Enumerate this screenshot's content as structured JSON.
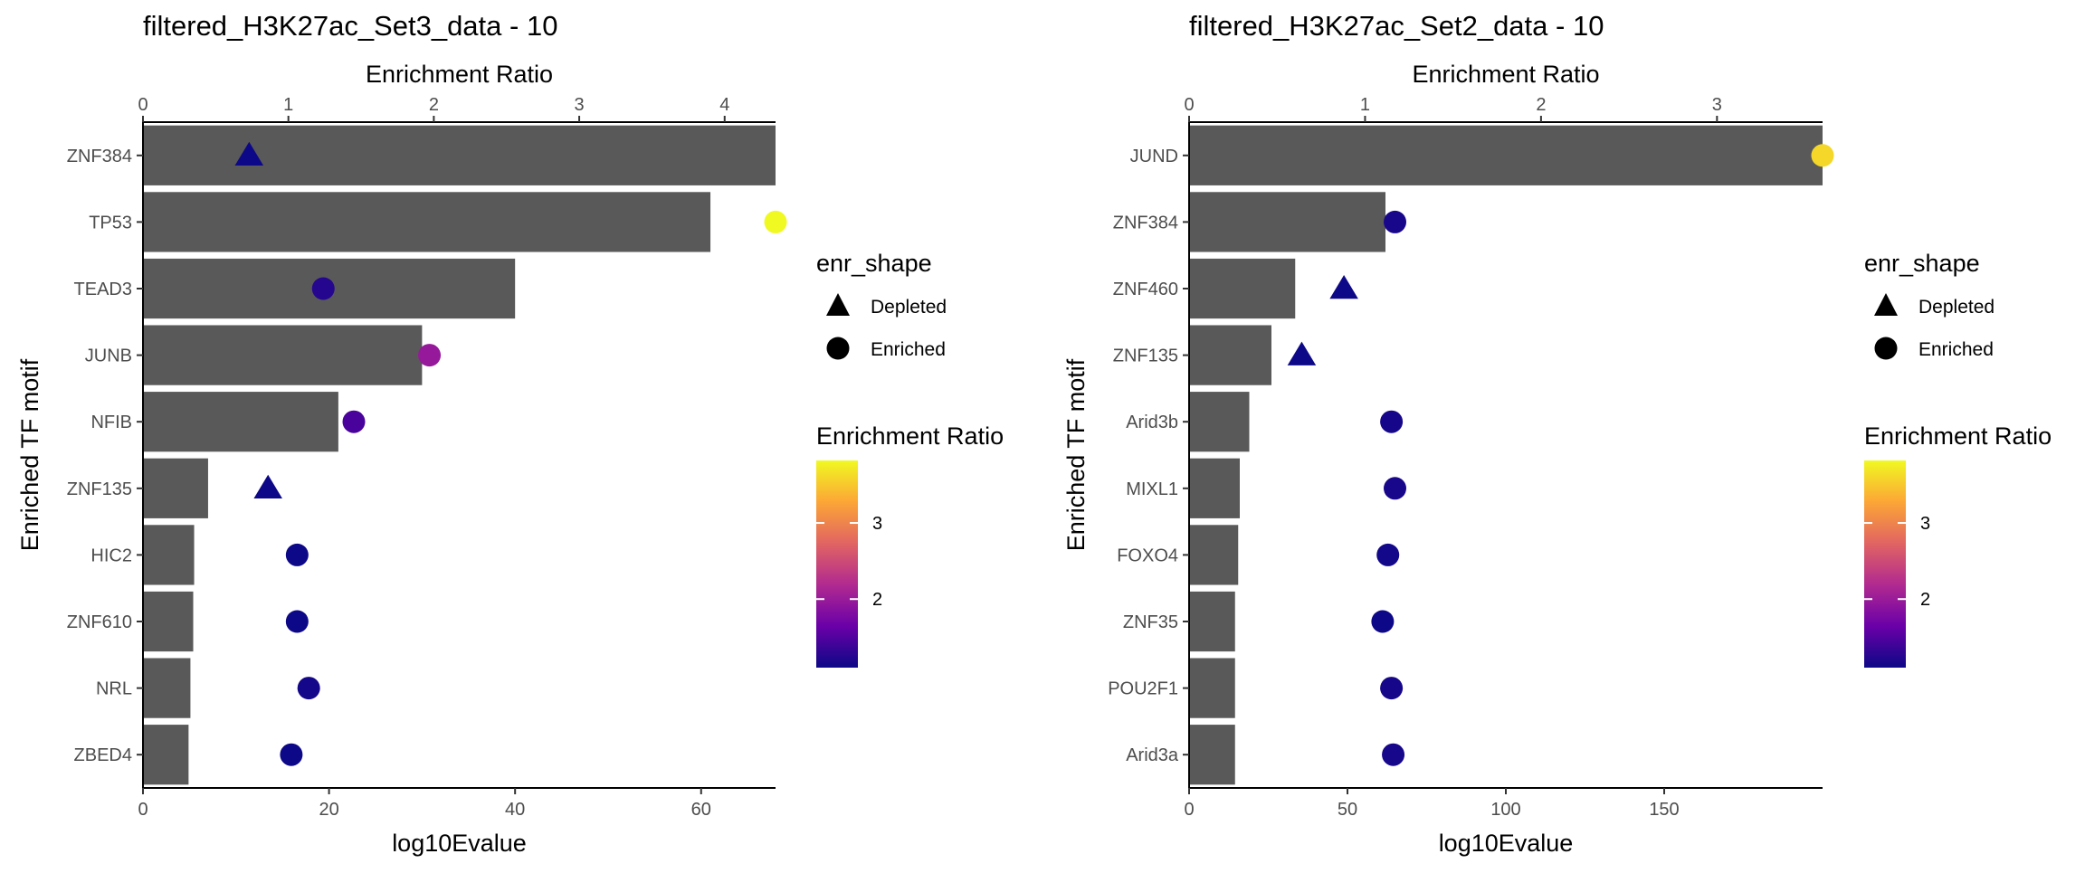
{
  "colors": {
    "bar": "#595959",
    "axis": "#000000",
    "tick_text": "#4d4d4d",
    "plasma": [
      "#0d0887",
      "#6a00a8",
      "#b12a90",
      "#e16462",
      "#fca636",
      "#f0f921"
    ]
  },
  "legend_labels": {
    "shape_title": "enr_shape",
    "depleted": "Depleted",
    "enriched": "Enriched",
    "color_title": "Enrichment Ratio"
  },
  "chart_data": [
    {
      "type": "bar",
      "title": "filtered_H3K27ac_Set3_data - 10",
      "xlabel": "log10Evalue",
      "x2label": "Enrichment Ratio",
      "ylabel": "Enriched TF motif",
      "xlim": [
        0,
        68
      ],
      "x2lim": [
        0,
        4.35
      ],
      "xticks": [
        0,
        20,
        40,
        60
      ],
      "x2ticks": [
        0,
        1,
        2,
        3,
        4
      ],
      "colorbar": {
        "min": 1.1,
        "max": 3.82,
        "ticks": [
          2,
          3
        ]
      },
      "categories": [
        "ZNF384",
        "TP53",
        "TEAD3",
        "JUNB",
        "NFIB",
        "ZNF135",
        "HIC2",
        "ZNF610",
        "NRL",
        "ZBED4"
      ],
      "log10Evalue": [
        68,
        61,
        40,
        30,
        21,
        7,
        5.5,
        5.4,
        5.1,
        4.9
      ],
      "enrichment_ratio": [
        0.73,
        4.35,
        1.24,
        1.97,
        1.45,
        0.86,
        1.06,
        1.06,
        1.14,
        1.02
      ],
      "enr_shape": [
        "Depleted",
        "Enriched",
        "Enriched",
        "Enriched",
        "Enriched",
        "Depleted",
        "Enriched",
        "Enriched",
        "Enriched",
        "Enriched"
      ]
    },
    {
      "type": "bar",
      "title": "filtered_H3K27ac_Set2_data - 10",
      "xlabel": "log10Evalue",
      "x2label": "Enrichment Ratio",
      "ylabel": "Enriched TF motif",
      "xlim": [
        0,
        200
      ],
      "x2lim": [
        0,
        3.6
      ],
      "xticks": [
        0,
        50,
        100,
        150
      ],
      "x2ticks": [
        0,
        1,
        2,
        3
      ],
      "colorbar": {
        "min": 1.1,
        "max": 3.82,
        "ticks": [
          2,
          3
        ]
      },
      "categories": [
        "JUND",
        "ZNF384",
        "ZNF460",
        "ZNF135",
        "Arid3b",
        "MIXL1",
        "FOXO4",
        "ZNF35",
        "POU2F1",
        "Arid3a"
      ],
      "log10Evalue": [
        200,
        62,
        33.5,
        26,
        19,
        16,
        15.5,
        14.5,
        14.5,
        14.5
      ],
      "enrichment_ratio": [
        3.6,
        1.17,
        0.88,
        0.64,
        1.15,
        1.17,
        1.13,
        1.1,
        1.15,
        1.16
      ],
      "enr_shape": [
        "Enriched",
        "Enriched",
        "Depleted",
        "Depleted",
        "Enriched",
        "Enriched",
        "Enriched",
        "Enriched",
        "Enriched",
        "Enriched"
      ]
    }
  ]
}
